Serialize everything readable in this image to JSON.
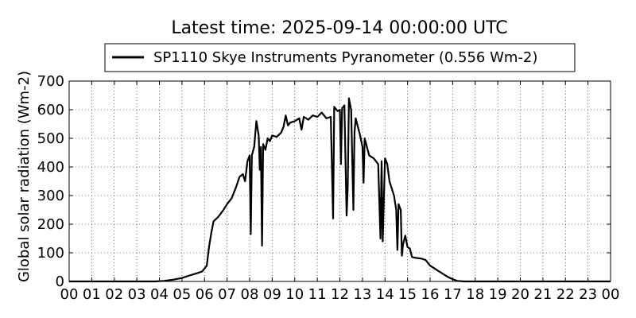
{
  "chart_data": {
    "type": "line",
    "title": "Latest time: 2025-09-14 00:00:00 UTC",
    "xlabel": "",
    "ylabel": "Global solar radiation (Wm-2)",
    "xlim": [
      0,
      24
    ],
    "ylim": [
      0,
      700
    ],
    "grid": true,
    "grid_style": "dotted",
    "legend_position": "top-center",
    "x_tick_labels": [
      "00",
      "01",
      "02",
      "03",
      "04",
      "05",
      "06",
      "07",
      "08",
      "09",
      "10",
      "11",
      "12",
      "13",
      "14",
      "15",
      "16",
      "17",
      "18",
      "19",
      "20",
      "21",
      "22",
      "23",
      "00"
    ],
    "y_ticks": [
      0,
      100,
      200,
      300,
      400,
      500,
      600,
      700
    ],
    "series": [
      {
        "name": "SP1110 Skye Instruments Pyranometer (0.556 Wm-2)",
        "color": "#000000",
        "points": [
          [
            0,
            0
          ],
          [
            1,
            0
          ],
          [
            2,
            0
          ],
          [
            3,
            0
          ],
          [
            3.8,
            0
          ],
          [
            4.2,
            2
          ],
          [
            4.6,
            6
          ],
          [
            5.0,
            12
          ],
          [
            5.3,
            20
          ],
          [
            5.6,
            27
          ],
          [
            5.9,
            35
          ],
          [
            6.1,
            55
          ],
          [
            6.2,
            120
          ],
          [
            6.3,
            170
          ],
          [
            6.4,
            210
          ],
          [
            6.6,
            225
          ],
          [
            6.8,
            245
          ],
          [
            7.0,
            270
          ],
          [
            7.2,
            290
          ],
          [
            7.4,
            330
          ],
          [
            7.55,
            365
          ],
          [
            7.7,
            375
          ],
          [
            7.8,
            350
          ],
          [
            7.9,
            420
          ],
          [
            8.0,
            440
          ],
          [
            8.05,
            165
          ],
          [
            8.1,
            440
          ],
          [
            8.2,
            470
          ],
          [
            8.3,
            560
          ],
          [
            8.4,
            510
          ],
          [
            8.45,
            390
          ],
          [
            8.5,
            470
          ],
          [
            8.55,
            125
          ],
          [
            8.6,
            480
          ],
          [
            8.7,
            460
          ],
          [
            8.8,
            500
          ],
          [
            8.9,
            490
          ],
          [
            9.0,
            510
          ],
          [
            9.2,
            505
          ],
          [
            9.4,
            520
          ],
          [
            9.5,
            540
          ],
          [
            9.6,
            580
          ],
          [
            9.7,
            545
          ],
          [
            9.8,
            555
          ],
          [
            10.0,
            560
          ],
          [
            10.2,
            570
          ],
          [
            10.3,
            530
          ],
          [
            10.4,
            575
          ],
          [
            10.6,
            565
          ],
          [
            10.8,
            580
          ],
          [
            11.0,
            575
          ],
          [
            11.2,
            590
          ],
          [
            11.4,
            570
          ],
          [
            11.6,
            575
          ],
          [
            11.7,
            220
          ],
          [
            11.75,
            610
          ],
          [
            11.9,
            595
          ],
          [
            12.0,
            600
          ],
          [
            12.05,
            410
          ],
          [
            12.1,
            605
          ],
          [
            12.2,
            615
          ],
          [
            12.3,
            230
          ],
          [
            12.35,
            330
          ],
          [
            12.4,
            640
          ],
          [
            12.5,
            600
          ],
          [
            12.6,
            250
          ],
          [
            12.65,
            520
          ],
          [
            12.7,
            570
          ],
          [
            12.8,
            540
          ],
          [
            12.9,
            510
          ],
          [
            13.0,
            470
          ],
          [
            13.05,
            345
          ],
          [
            13.1,
            500
          ],
          [
            13.2,
            470
          ],
          [
            13.3,
            440
          ],
          [
            13.5,
            430
          ],
          [
            13.6,
            420
          ],
          [
            13.7,
            410
          ],
          [
            13.8,
            150
          ],
          [
            13.85,
            420
          ],
          [
            13.9,
            140
          ],
          [
            14.0,
            430
          ],
          [
            14.1,
            410
          ],
          [
            14.2,
            350
          ],
          [
            14.4,
            300
          ],
          [
            14.5,
            250
          ],
          [
            14.55,
            110
          ],
          [
            14.6,
            270
          ],
          [
            14.7,
            250
          ],
          [
            14.75,
            90
          ],
          [
            14.8,
            130
          ],
          [
            14.9,
            160
          ],
          [
            15.0,
            120
          ],
          [
            15.1,
            115
          ],
          [
            15.2,
            85
          ],
          [
            15.4,
            82
          ],
          [
            15.6,
            80
          ],
          [
            15.8,
            75
          ],
          [
            16.0,
            55
          ],
          [
            16.2,
            45
          ],
          [
            16.4,
            35
          ],
          [
            16.6,
            25
          ],
          [
            16.8,
            15
          ],
          [
            17.0,
            8
          ],
          [
            17.2,
            2
          ],
          [
            17.5,
            0
          ],
          [
            18,
            0
          ],
          [
            19,
            0
          ],
          [
            20,
            0
          ],
          [
            21,
            0
          ],
          [
            22,
            0
          ],
          [
            23,
            0
          ],
          [
            24,
            0
          ]
        ]
      }
    ]
  }
}
